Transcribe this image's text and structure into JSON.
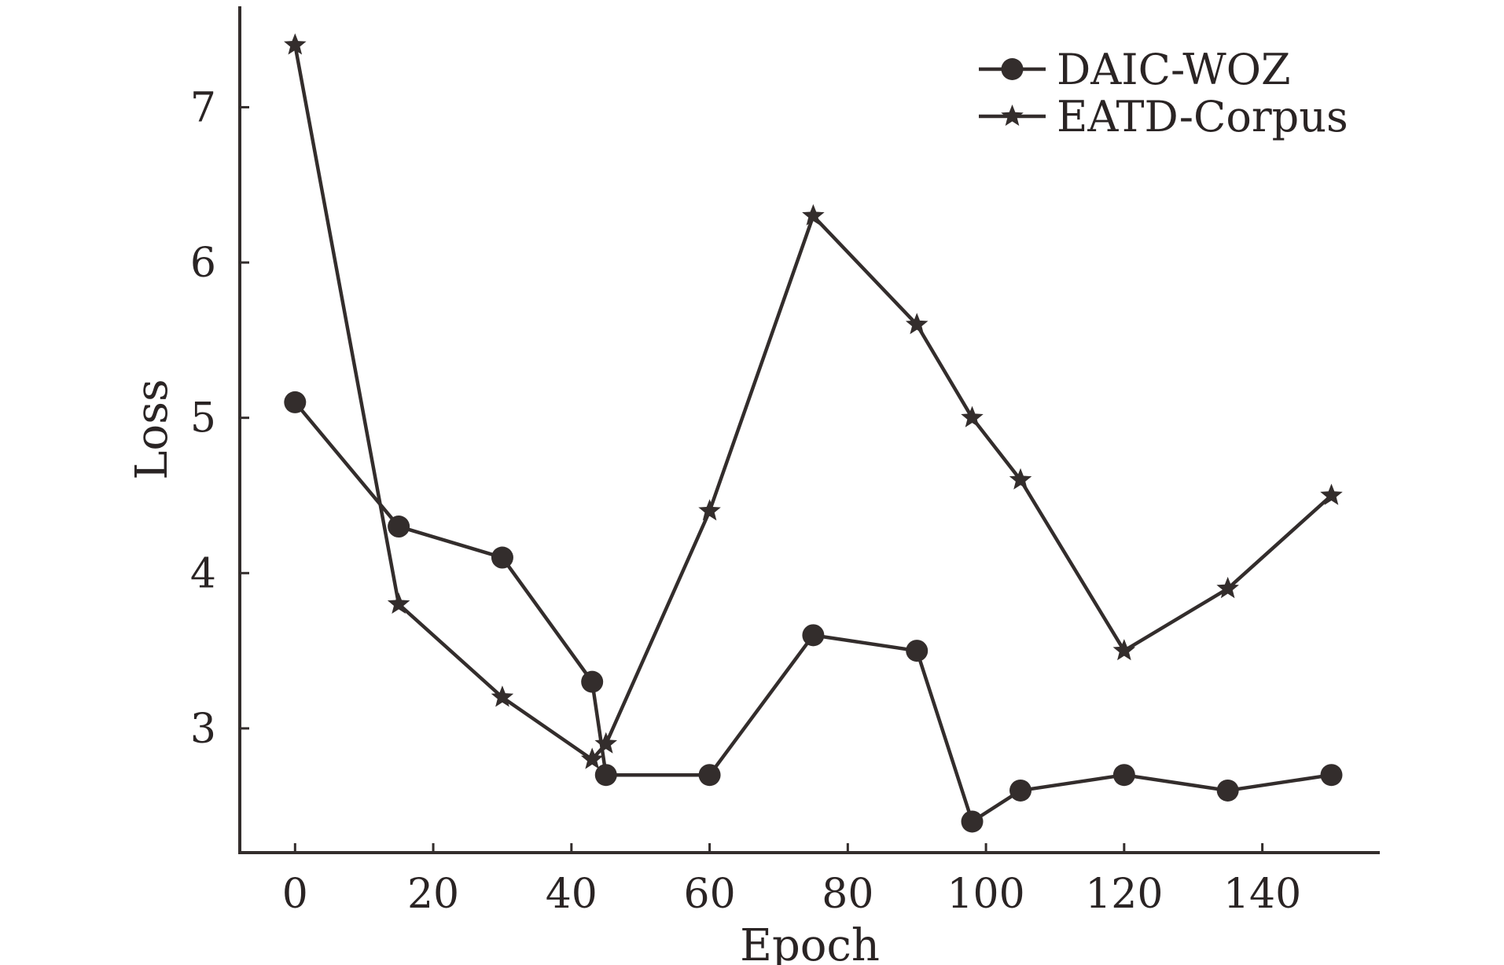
{
  "chart_data": {
    "type": "line",
    "title": "",
    "xlabel": "Epoch",
    "ylabel": "Loss",
    "xlim": [
      -8,
      157
    ],
    "ylim": [
      2.2,
      7.65
    ],
    "xticks": [
      0,
      20,
      40,
      60,
      80,
      100,
      120,
      140
    ],
    "yticks": [
      3,
      4,
      5,
      6,
      7
    ],
    "grid": false,
    "legend_position": "top-right",
    "line_color": "#332d2c",
    "series": [
      {
        "name": "DAIC-WOZ",
        "marker": "circle",
        "x": [
          0,
          15,
          30,
          43,
          45,
          60,
          75,
          90,
          98,
          105,
          120,
          135,
          150
        ],
        "y": [
          5.1,
          4.3,
          4.1,
          3.3,
          2.7,
          2.7,
          3.6,
          3.5,
          2.4,
          2.6,
          2.7,
          2.6,
          2.7
        ]
      },
      {
        "name": "EATD-Corpus",
        "marker": "star",
        "x": [
          0,
          15,
          30,
          43,
          45,
          60,
          75,
          90,
          98,
          105,
          120,
          135,
          150
        ],
        "y": [
          7.4,
          3.8,
          3.2,
          2.8,
          2.9,
          4.4,
          6.3,
          5.6,
          5.0,
          4.6,
          3.5,
          3.9,
          4.5
        ]
      }
    ]
  }
}
